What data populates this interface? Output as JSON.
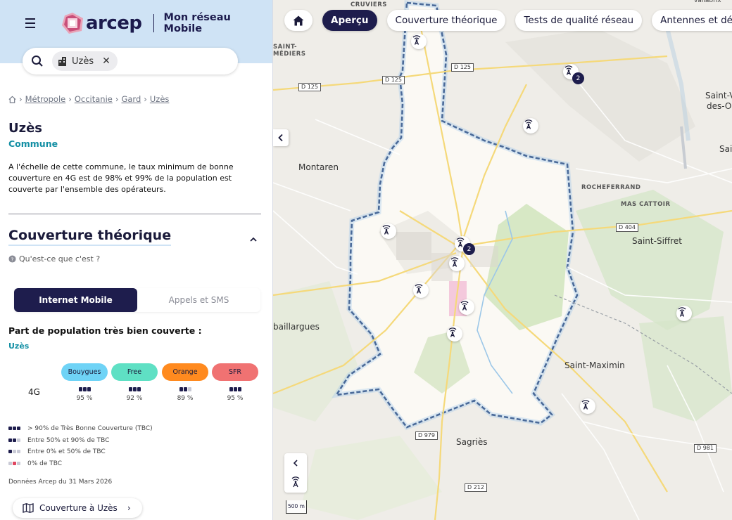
{
  "header": {
    "logo_text": "arcep",
    "app_name": "Mon réseau Mobile"
  },
  "search": {
    "chip_label": "Uzès"
  },
  "breadcrumb": [
    "Métropole",
    "Occitanie",
    "Gard",
    "Uzès"
  ],
  "commune": {
    "name": "Uzès",
    "type": "Commune",
    "summary": "A l'échelle de cette commune, le taux minimum de bonne couverture en 4G est de 98% et 99% de la population est couverte par l'ensemble des opérateurs."
  },
  "section": {
    "title": "Couverture théorique",
    "whatis": "Qu'est-ce que c'est ?"
  },
  "toggle": {
    "internet": "Internet Mobile",
    "calls": "Appels et SMS"
  },
  "population": {
    "title": "Part de population très bien couverte :",
    "place": "Uzès",
    "row_label": "4G",
    "operators": [
      {
        "name": "Bouygues",
        "color": "#6fd3f6",
        "pct": "95 %",
        "level": 3
      },
      {
        "name": "Free",
        "color": "#5fe0c4",
        "pct": "92 %",
        "level": 3
      },
      {
        "name": "Orange",
        "color": "#ff8a1f",
        "pct": "89 %",
        "level": 2
      },
      {
        "name": "SFR",
        "color": "#f07272",
        "pct": "95 %",
        "level": 3
      }
    ]
  },
  "legend": [
    "> 90% de Très Bonne Couverture (TBC)",
    "Entre 50% et 90% de TBC",
    "Entre 0% et 50% de TBC",
    "0% de TBC"
  ],
  "data_date": "Données Arcep du 31 Mars 2026",
  "coverage_button": "Couverture à Uzès",
  "map_nav": {
    "apercu": "Aperçu",
    "couverture": "Couverture théorique",
    "tests": "Tests de qualité réseau",
    "antennes": "Antennes et déploie"
  },
  "map_labels": {
    "cruviers": "CRUVIERS",
    "saint_mediers_1": "SAINT-",
    "saint_mediers_2": "MÉDIERS",
    "montaren": "Montaren",
    "rocheferrand": "ROCHEFERRAND",
    "mas_cattoir": "MAS CATTOIR",
    "saint_siffret": "Saint-Siffret",
    "saint_maximin": "Saint-Maximin",
    "sagries": "Sagriès",
    "baillargues": "baillargues",
    "saint_victor_1": "Saint-V",
    "saint_victor_2": "des-O",
    "sai": "Sai",
    "vallabrix": "vallabrix",
    "d125_a": "D 125",
    "d125_b": "D 125",
    "d125_c": "D 125",
    "d404": "D 404",
    "d979": "D 979",
    "d212": "D 212",
    "d981": "D 981",
    "scale": "500 m"
  },
  "antenna_badges": [
    "2",
    "2"
  ]
}
